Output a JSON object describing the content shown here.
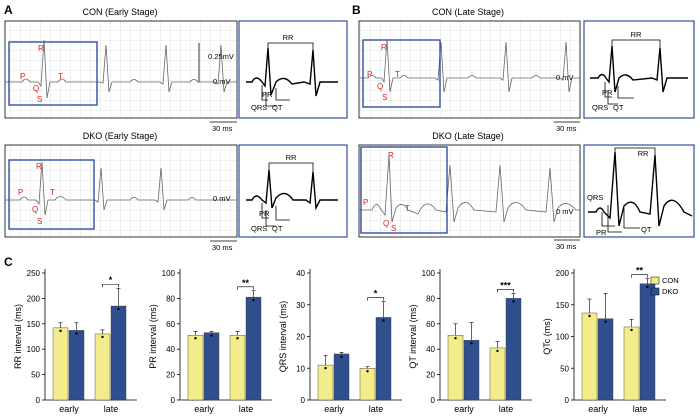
{
  "panels": {
    "A": "A",
    "B": "B",
    "C": "C"
  },
  "ecg": {
    "con_early": {
      "title": "CON (Early Stage)",
      "mv_label": "0.25mV",
      "zero_label": "0 mV",
      "time_label": "30 ms"
    },
    "dko_early": {
      "title": "DKO (Early Stage)",
      "zero_label": "0 mV",
      "time_label": "30 ms"
    },
    "con_late": {
      "title": "CON (Late Stage)",
      "zero_label": "0 mV",
      "time_label": "30 ms"
    },
    "dko_late": {
      "title": "DKO (Late Stage)",
      "zero_label": "0 mV",
      "time_label": "30 ms"
    },
    "wave_labels": {
      "P": "P",
      "Q": "Q",
      "R": "R",
      "S": "S",
      "T": "T"
    },
    "interval_labels": {
      "RR": "RR",
      "PR": "PR",
      "QRS": "QRS",
      "QT": "QT"
    }
  },
  "colors": {
    "con": "#f2ec8a",
    "dko": "#2f4f8f",
    "box": "#2f4f9f",
    "wave_label": "#e02020",
    "grid": "#cccccc"
  },
  "chart_data": [
    {
      "type": "bar",
      "ylabel": "RR interval (ms)",
      "ylim": [
        0,
        250
      ],
      "yticks": [
        0,
        50,
        100,
        150,
        200,
        250
      ],
      "categories": [
        "early",
        "late"
      ],
      "series": [
        {
          "name": "CON",
          "values": [
            142,
            130
          ],
          "errors": [
            10,
            8
          ]
        },
        {
          "name": "DKO",
          "values": [
            137,
            185
          ],
          "errors": [
            15,
            35
          ]
        }
      ],
      "significance": {
        "category": "late",
        "label": "*"
      }
    },
    {
      "type": "bar",
      "ylabel": "PR interval (ms)",
      "ylim": [
        0,
        100
      ],
      "yticks": [
        0,
        20,
        40,
        60,
        80,
        100
      ],
      "categories": [
        "early",
        "late"
      ],
      "series": [
        {
          "name": "CON",
          "values": [
            51,
            51
          ],
          "errors": [
            3,
            3
          ]
        },
        {
          "name": "DKO",
          "values": [
            53,
            81
          ],
          "errors": [
            1,
            5
          ]
        }
      ],
      "significance": {
        "category": "late",
        "label": "**"
      }
    },
    {
      "type": "bar",
      "ylabel": "QRS interval (ms)",
      "ylim": [
        0,
        40
      ],
      "yticks": [
        0,
        10,
        20,
        30,
        40
      ],
      "categories": [
        "early",
        "late"
      ],
      "series": [
        {
          "name": "CON",
          "values": [
            11,
            10
          ],
          "errors": [
            3,
            0.5
          ]
        },
        {
          "name": "DKO",
          "values": [
            14.5,
            26
          ],
          "errors": [
            0.5,
            5
          ]
        }
      ],
      "significance": {
        "category": "late",
        "label": "*"
      }
    },
    {
      "type": "bar",
      "ylabel": "QT interval (ms)",
      "ylim": [
        0,
        100
      ],
      "yticks": [
        0,
        20,
        40,
        60,
        80,
        100
      ],
      "categories": [
        "early",
        "late"
      ],
      "series": [
        {
          "name": "CON",
          "values": [
            51,
            41
          ],
          "errors": [
            9,
            5
          ]
        },
        {
          "name": "DKO",
          "values": [
            47,
            80
          ],
          "errors": [
            14,
            4
          ]
        }
      ],
      "significance": {
        "category": "late",
        "label": "***"
      }
    },
    {
      "type": "bar",
      "ylabel": "QTc (ms)",
      "ylim": [
        0,
        200
      ],
      "yticks": [
        0,
        50,
        100,
        150,
        200
      ],
      "categories": [
        "early",
        "late"
      ],
      "series": [
        {
          "name": "CON",
          "values": [
            137,
            115
          ],
          "errors": [
            22,
            12
          ]
        },
        {
          "name": "DKO",
          "values": [
            128,
            183
          ],
          "errors": [
            40,
            8
          ]
        }
      ],
      "significance": {
        "category": "late",
        "label": "**"
      }
    }
  ],
  "legend": {
    "placement": "top-right",
    "items": [
      "CON",
      "DKO"
    ]
  }
}
